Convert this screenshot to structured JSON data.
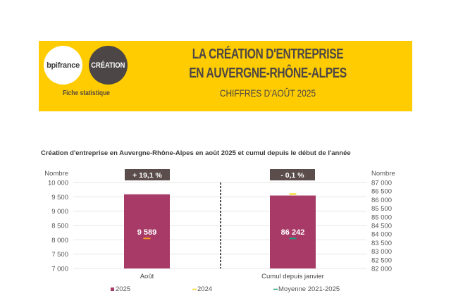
{
  "header": {
    "logo_left": "bpifrance",
    "logo_right": "CRÉATION",
    "tagline": "Fiche statistique",
    "title_line1": "LA CRÉATION D'ENTREPRISE",
    "title_line2": "EN AUVERGNE-RHÔNE-ALPES",
    "subtitle": "CHIFFRES D'AOÛT 2025"
  },
  "colors": {
    "banner": "#fecc00",
    "bar_2025": "#a83a67",
    "marker_2024_left": "#f39a1e",
    "marker_2024_right": "#f5d21a",
    "marker_moyenne": "#1f9e7a",
    "badge": "#5a4d4b"
  },
  "chart_data": {
    "type": "bar",
    "title": "Création d'entreprise en Auvergne-Rhône-Alpes en août 2025 et cumul depuis le début de l'année",
    "panels": [
      {
        "category": "Août",
        "axis": "left",
        "ylabel": "Nombre",
        "ylim": [
          7000,
          10000
        ],
        "ticks": [
          7000,
          7500,
          8000,
          8500,
          9000,
          9500,
          10000
        ],
        "tick_labels": [
          "7 000",
          "7 500",
          "8 000",
          "8 500",
          "9 000",
          "9 500",
          "10 000"
        ],
        "value_2025": 9589,
        "value_label": "9 589",
        "marker_2024": 8051,
        "change_label": "+ 19,1 %"
      },
      {
        "category": "Cumul depuis janvier",
        "axis": "right",
        "ylabel": "Nombre",
        "ylim": [
          82000,
          87000
        ],
        "ticks": [
          82000,
          82500,
          83000,
          83500,
          84000,
          84500,
          85000,
          85500,
          86000,
          86500,
          87000
        ],
        "tick_labels": [
          "82 000",
          "82 500",
          "83 000",
          "83 500",
          "84 000",
          "84 500",
          "85 000",
          "85 500",
          "86 000",
          "86 500",
          "87 000"
        ],
        "value_2025": 86242,
        "value_label": "86 242",
        "marker_2024": 86330,
        "marker_moyenne": 83750,
        "change_label": "- 0,1 %"
      }
    ],
    "legend": [
      "2025",
      "2024",
      "Moyenne 2021-2025"
    ],
    "legend_position": "bottom",
    "grid": true
  }
}
